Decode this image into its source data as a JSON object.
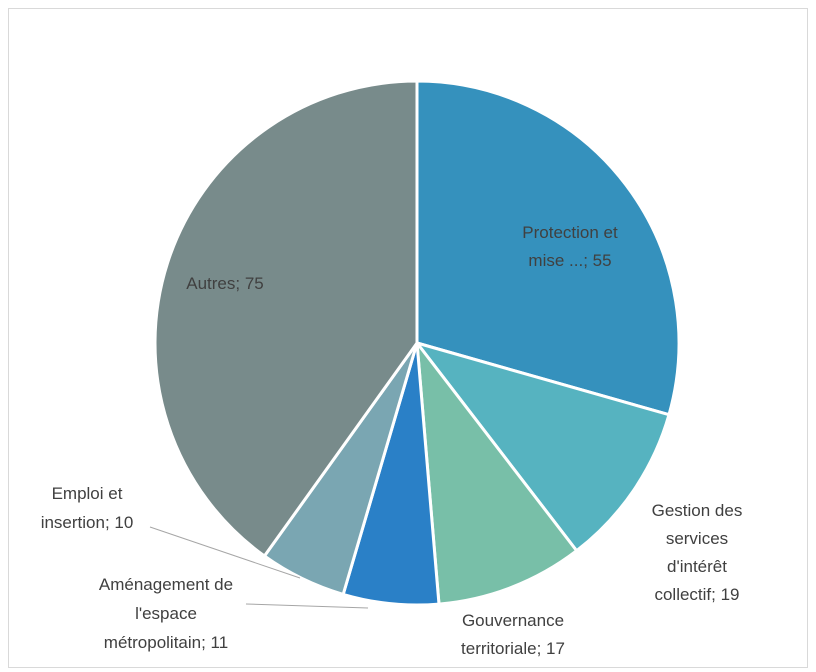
{
  "chart_data": {
    "type": "pie",
    "title": "",
    "slices": [
      {
        "label": "Protection et mise ...",
        "value": 55,
        "color": "#3591bd",
        "label_lines": [
          "Protection et",
          "mise ...; 55"
        ]
      },
      {
        "label": "Gestion des services d'intérêt collectif",
        "value": 19,
        "color": "#56b3c0",
        "label_lines": [
          "Gestion des",
          "services",
          "d'intérêt",
          "collectif; 19"
        ]
      },
      {
        "label": "Gouvernance territoriale",
        "value": 17,
        "color": "#78bfa8",
        "label_lines": [
          "Gouvernance",
          "territoriale; 17"
        ]
      },
      {
        "label": "Aménagement de l'espace métropolitain",
        "value": 11,
        "color": "#2a80c7",
        "label_lines": [
          "Aménagement de",
          "l'espace",
          "métropolitain; 11"
        ]
      },
      {
        "label": "Emploi et insertion",
        "value": 10,
        "color": "#7aa6b2",
        "label_lines": [
          "Emploi et",
          "insertion; 10"
        ]
      },
      {
        "label": "Autres",
        "value": 75,
        "color": "#788b8b",
        "label_lines": [
          "Autres; 75"
        ]
      }
    ]
  }
}
